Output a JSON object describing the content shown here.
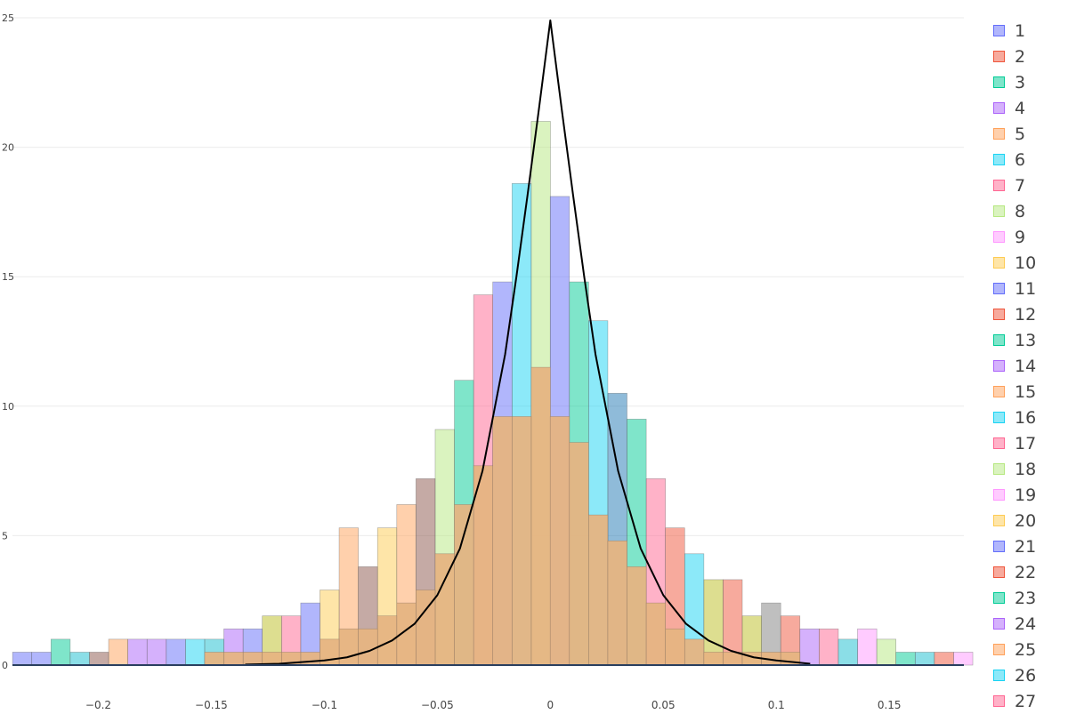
{
  "chart_data": {
    "type": "bar",
    "chart_kind": "overlaid histogram with a curve (overlay)",
    "xlim": [
      -0.238,
      0.183
    ],
    "ylim": [
      0,
      25
    ],
    "bin_width": 0.0085,
    "x_ticks": [
      {
        "value": -0.2,
        "label": "−0.2"
      },
      {
        "value": -0.15,
        "label": "−0.15"
      },
      {
        "value": -0.1,
        "label": "−0.1"
      },
      {
        "value": -0.05,
        "label": "−0.05"
      },
      {
        "value": 0,
        "label": "0"
      },
      {
        "value": 0.05,
        "label": "0.05"
      },
      {
        "value": 0.1,
        "label": "0.1"
      },
      {
        "value": 0.15,
        "label": "0.15"
      }
    ],
    "y_ticks": [
      {
        "value": 0,
        "label": "0"
      },
      {
        "value": 5,
        "label": "5"
      },
      {
        "value": 10,
        "label": "10"
      },
      {
        "value": 15,
        "label": "15"
      },
      {
        "value": 20,
        "label": "20"
      },
      {
        "value": 25,
        "label": "25"
      }
    ],
    "grid": "horizontal",
    "legend_placement": "right",
    "bar_opacity": 0.5,
    "tallest_bars": [
      {
        "x_center": -0.0042,
        "value": 21.0,
        "color": "#b6e880"
      },
      {
        "x_center": -0.0127,
        "value": 18.6,
        "color": "#19d3f3"
      },
      {
        "x_center": 0.0042,
        "value": 18.1,
        "color": "#636efa"
      },
      {
        "x_center": 0.0127,
        "value": 14.8,
        "color": "#00cc96"
      },
      {
        "x_center": -0.0212,
        "value": 14.8,
        "color": "#636efa"
      },
      {
        "x_center": -0.0297,
        "value": 14.3,
        "color": "#ff6692"
      },
      {
        "x_center": 0.0212,
        "value": 13.3,
        "color": "#19d3f3"
      },
      {
        "x_center": -0.0382,
        "value": 11.0,
        "color": "#00cc96"
      },
      {
        "x_center": 0.0297,
        "value": 10.5,
        "color": "#1f77b4"
      },
      {
        "x_center": 0.0382,
        "value": 9.5,
        "color": "#00cc96"
      },
      {
        "x_center": -0.0467,
        "value": 9.1,
        "color": "#b6e880"
      },
      {
        "x_center": -0.0552,
        "value": 7.2,
        "color": "#8c564b"
      },
      {
        "x_center": 0.0467,
        "value": 7.2,
        "color": "#ff6692"
      },
      {
        "x_center": -0.0637,
        "value": 6.2,
        "color": "#ffa15a"
      },
      {
        "x_center": -0.0722,
        "value": 5.3,
        "color": "#fecb52"
      },
      {
        "x_center": -0.0892,
        "value": 5.3,
        "color": "#ffa15a"
      },
      {
        "x_center": 0.0552,
        "value": 5.3,
        "color": "#ef553b"
      },
      {
        "x_center": 0.0637,
        "value": 4.3,
        "color": "#19d3f3"
      },
      {
        "x_center": -0.0807,
        "value": 3.8,
        "color": "#8c564b"
      },
      {
        "x_center": 0.0722,
        "value": 3.3,
        "color": "#bcbd22"
      },
      {
        "x_center": 0.0807,
        "value": 3.3,
        "color": "#ef553b"
      },
      {
        "x_center": -0.0977,
        "value": 2.9,
        "color": "#fecb52"
      },
      {
        "x_center": -0.1062,
        "value": 2.4,
        "color": "#636efa"
      },
      {
        "x_center": 0.0977,
        "value": 2.4,
        "color": "#7f7f7f"
      },
      {
        "x_center": -0.1147,
        "value": 1.9,
        "color": "#ff6692"
      },
      {
        "x_center": -0.1232,
        "value": 1.9,
        "color": "#bcbd22"
      },
      {
        "x_center": 0.0892,
        "value": 1.9,
        "color": "#bcbd22"
      },
      {
        "x_center": 0.1062,
        "value": 1.9,
        "color": "#ef553b"
      },
      {
        "x_center": -0.1317,
        "value": 1.4,
        "color": "#636efa"
      },
      {
        "x_center": -0.1402,
        "value": 1.4,
        "color": "#ab63fa"
      },
      {
        "x_center": 0.1147,
        "value": 1.4,
        "color": "#ab63fa"
      },
      {
        "x_center": 0.1232,
        "value": 1.4,
        "color": "#ff6692"
      },
      {
        "x_center": 0.1402,
        "value": 1.4,
        "color": "#ff97ff"
      },
      {
        "x_center": -0.1487,
        "value": 1.0,
        "color": "#17becf"
      },
      {
        "x_center": -0.1572,
        "value": 1.0,
        "color": "#19d3f3"
      },
      {
        "x_center": -0.1657,
        "value": 1.0,
        "color": "#636efa"
      },
      {
        "x_center": -0.1742,
        "value": 1.0,
        "color": "#ab63fa"
      },
      {
        "x_center": -0.1827,
        "value": 1.0,
        "color": "#ab63fa"
      },
      {
        "x_center": -0.1912,
        "value": 1.0,
        "color": "#ffa15a"
      },
      {
        "x_center": -0.2167,
        "value": 1.0,
        "color": "#00cc96"
      },
      {
        "x_center": 0.1317,
        "value": 1.0,
        "color": "#17becf"
      },
      {
        "x_center": 0.1487,
        "value": 1.0,
        "color": "#b6e880"
      },
      {
        "x_center": -0.1997,
        "value": 0.5,
        "color": "#8c564b"
      },
      {
        "x_center": -0.2082,
        "value": 0.5,
        "color": "#17becf"
      },
      {
        "x_center": -0.2252,
        "value": 0.5,
        "color": "#636efa"
      },
      {
        "x_center": -0.2337,
        "value": 0.5,
        "color": "#636efa"
      },
      {
        "x_center": 0.1572,
        "value": 0.5,
        "color": "#00cc96"
      },
      {
        "x_center": 0.1657,
        "value": 0.5,
        "color": "#17becf"
      },
      {
        "x_center": 0.1742,
        "value": 0.5,
        "color": "#ef553b"
      },
      {
        "x_center": 0.1827,
        "value": 0.5,
        "color": "#ff97ff"
      }
    ],
    "base_histogram": {
      "color": "#ffa15a",
      "bins": [
        {
          "x_center": -0.0042,
          "value": 11.5
        },
        {
          "x_center": -0.0127,
          "value": 9.6
        },
        {
          "x_center": 0.0042,
          "value": 9.6
        },
        {
          "x_center": 0.0127,
          "value": 8.6
        },
        {
          "x_center": -0.0212,
          "value": 9.6
        },
        {
          "x_center": -0.0297,
          "value": 7.7
        },
        {
          "x_center": 0.0212,
          "value": 5.8
        },
        {
          "x_center": -0.0382,
          "value": 6.2
        },
        {
          "x_center": 0.0297,
          "value": 4.8
        },
        {
          "x_center": -0.0467,
          "value": 4.3
        },
        {
          "x_center": 0.0382,
          "value": 3.8
        },
        {
          "x_center": -0.0552,
          "value": 2.9
        },
        {
          "x_center": 0.0467,
          "value": 2.4
        },
        {
          "x_center": -0.0637,
          "value": 2.4
        },
        {
          "x_center": -0.0722,
          "value": 1.9
        },
        {
          "x_center": 0.0552,
          "value": 1.4
        },
        {
          "x_center": -0.0807,
          "value": 1.4
        },
        {
          "x_center": -0.0892,
          "value": 1.4
        },
        {
          "x_center": 0.0637,
          "value": 1.0
        },
        {
          "x_center": -0.0977,
          "value": 1.0
        },
        {
          "x_center": 0.0722,
          "value": 0.5
        },
        {
          "x_center": 0.0807,
          "value": 0.5
        },
        {
          "x_center": -0.1062,
          "value": 0.5
        },
        {
          "x_center": -0.1147,
          "value": 0.5
        },
        {
          "x_center": -0.1232,
          "value": 0.5
        },
        {
          "x_center": 0.0892,
          "value": 0.5
        },
        {
          "x_center": 0.0977,
          "value": 0.5
        },
        {
          "x_center": -0.1317,
          "value": 0.5
        },
        {
          "x_center": -0.1402,
          "value": 0.5
        },
        {
          "x_center": -0.1487,
          "value": 0.5
        },
        {
          "x_center": 0.1062,
          "value": 0.5
        }
      ]
    },
    "line_series": {
      "color": "#000000",
      "points": [
        [
          -0.135,
          0.02
        ],
        [
          -0.12,
          0.05
        ],
        [
          -0.1,
          0.18
        ],
        [
          -0.09,
          0.3
        ],
        [
          -0.08,
          0.55
        ],
        [
          -0.07,
          0.95
        ],
        [
          -0.06,
          1.6
        ],
        [
          -0.05,
          2.7
        ],
        [
          -0.04,
          4.5
        ],
        [
          -0.03,
          7.5
        ],
        [
          -0.02,
          12.0
        ],
        [
          -0.015,
          15.0
        ],
        [
          -0.01,
          18.2
        ],
        [
          -0.005,
          21.5
        ],
        [
          0,
          24.9
        ],
        [
          0.005,
          21.5
        ],
        [
          0.01,
          18.2
        ],
        [
          0.015,
          15.0
        ],
        [
          0.02,
          12.0
        ],
        [
          0.03,
          7.5
        ],
        [
          0.04,
          4.5
        ],
        [
          0.05,
          2.7
        ],
        [
          0.06,
          1.6
        ],
        [
          0.07,
          0.95
        ],
        [
          0.08,
          0.55
        ],
        [
          0.09,
          0.3
        ],
        [
          0.1,
          0.18
        ],
        [
          0.115,
          0.05
        ]
      ]
    },
    "legend": [
      {
        "label": "1",
        "color": "#636efa"
      },
      {
        "label": "2",
        "color": "#ef553b"
      },
      {
        "label": "3",
        "color": "#00cc96"
      },
      {
        "label": "4",
        "color": "#ab63fa"
      },
      {
        "label": "5",
        "color": "#ffa15a"
      },
      {
        "label": "6",
        "color": "#19d3f3"
      },
      {
        "label": "7",
        "color": "#ff6692"
      },
      {
        "label": "8",
        "color": "#b6e880"
      },
      {
        "label": "9",
        "color": "#ff97ff"
      },
      {
        "label": "10",
        "color": "#fecb52"
      },
      {
        "label": "11",
        "color": "#636efa"
      },
      {
        "label": "12",
        "color": "#ef553b"
      },
      {
        "label": "13",
        "color": "#00cc96"
      },
      {
        "label": "14",
        "color": "#ab63fa"
      },
      {
        "label": "15",
        "color": "#ffa15a"
      },
      {
        "label": "16",
        "color": "#19d3f3"
      },
      {
        "label": "17",
        "color": "#ff6692"
      },
      {
        "label": "18",
        "color": "#b6e880"
      },
      {
        "label": "19",
        "color": "#ff97ff"
      },
      {
        "label": "20",
        "color": "#fecb52"
      },
      {
        "label": "21",
        "color": "#636efa"
      },
      {
        "label": "22",
        "color": "#ef553b"
      },
      {
        "label": "23",
        "color": "#00cc96"
      },
      {
        "label": "24",
        "color": "#ab63fa"
      },
      {
        "label": "25",
        "color": "#ffa15a"
      },
      {
        "label": "26",
        "color": "#19d3f3"
      },
      {
        "label": "27",
        "color": "#ff6692"
      }
    ]
  }
}
